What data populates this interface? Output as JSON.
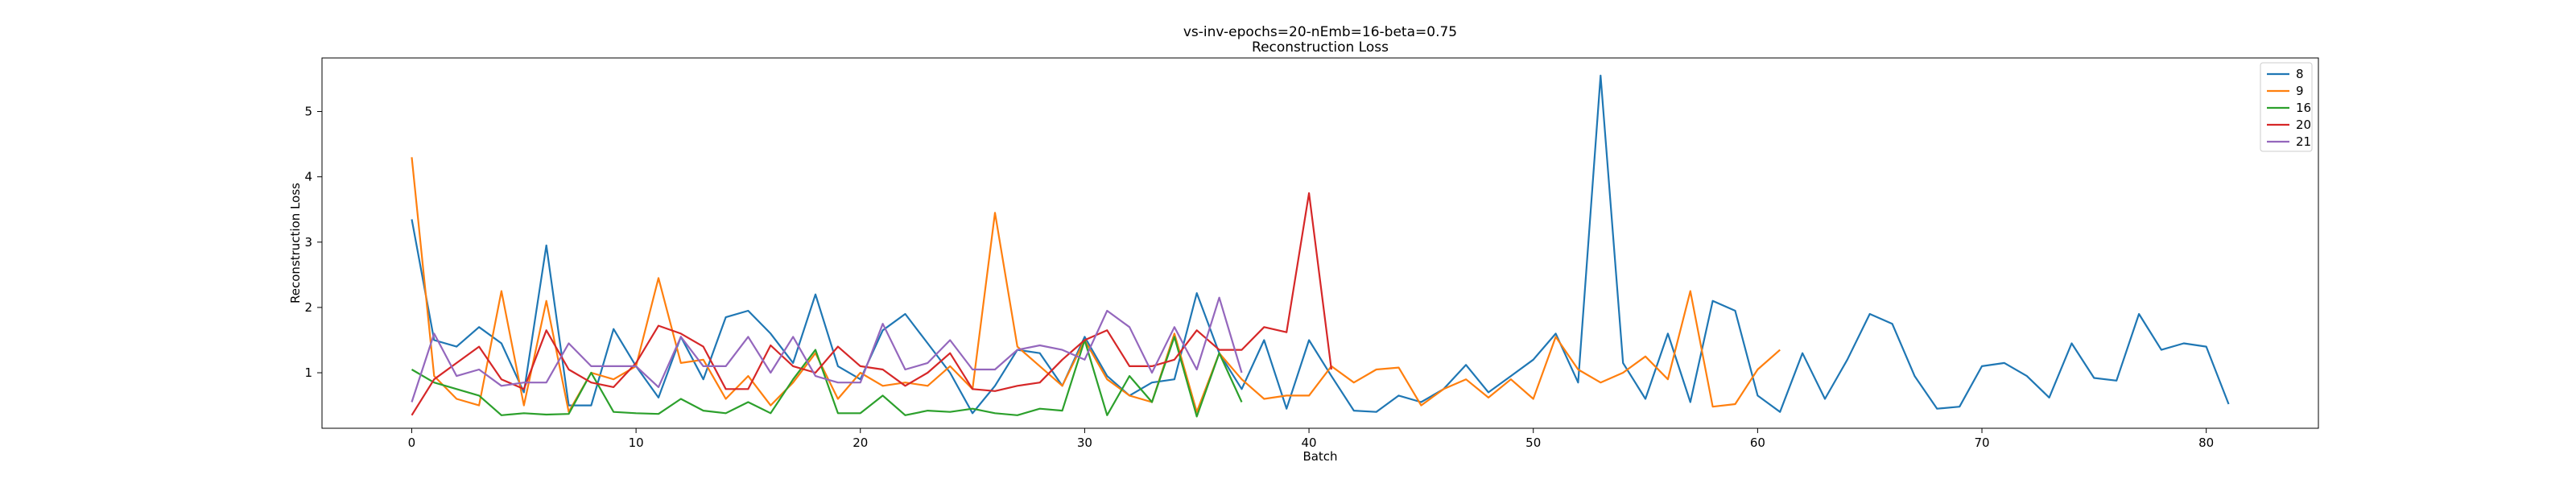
{
  "chart_data": {
    "type": "line",
    "title": "vs-inv-epochs=20-nEmb=16-beta=0.75",
    "subtitle": "Reconstruction Loss",
    "xlabel": "Batch",
    "ylabel": "Reconstruction Loss",
    "xlim": [
      -4,
      85
    ],
    "ylim": [
      0.15,
      5.82
    ],
    "xticks": [
      0,
      10,
      20,
      30,
      40,
      50,
      60,
      70,
      80
    ],
    "yticks": [
      1,
      2,
      3,
      4,
      5
    ],
    "grid": false,
    "legend_position": "top-right",
    "series": [
      {
        "name": "8",
        "color": "#1f77b4",
        "values": [
          3.35,
          1.5,
          1.4,
          1.7,
          1.45,
          0.7,
          2.95,
          0.5,
          0.5,
          1.67,
          1.1,
          0.62,
          1.55,
          0.9,
          1.85,
          1.95,
          1.6,
          1.15,
          2.2,
          1.1,
          0.9,
          1.65,
          1.9,
          1.45,
          1.0,
          0.38,
          0.8,
          1.35,
          1.3,
          0.8,
          1.55,
          0.95,
          0.65,
          0.85,
          0.9,
          2.22,
          1.3,
          0.75,
          1.5,
          0.45,
          1.5,
          0.95,
          0.42,
          0.4,
          0.65,
          0.55,
          0.75,
          1.12,
          0.7,
          0.95,
          1.2,
          1.6,
          0.85,
          5.55,
          1.15,
          0.6,
          1.6,
          0.55,
          2.1,
          1.95,
          0.65,
          0.4,
          1.3,
          0.6,
          1.2,
          1.9,
          1.75,
          0.95,
          0.45,
          0.48,
          1.1,
          1.15,
          0.95,
          0.62,
          1.45,
          0.92,
          0.88,
          1.9,
          1.35,
          1.45,
          1.4,
          0.52
        ]
      },
      {
        "name": "9",
        "color": "#ff7f0e",
        "values": [
          4.3,
          0.95,
          0.6,
          0.5,
          2.25,
          0.5,
          2.1,
          0.4,
          1.0,
          0.9,
          1.1,
          2.45,
          1.15,
          1.2,
          0.6,
          0.95,
          0.5,
          0.85,
          1.3,
          0.6,
          1.0,
          0.8,
          0.85,
          0.8,
          1.1,
          0.75,
          3.45,
          1.4,
          1.1,
          0.8,
          1.5,
          0.9,
          0.65,
          0.55,
          1.6,
          0.4,
          1.3,
          0.9,
          0.6,
          0.65,
          0.65,
          1.1,
          0.85,
          1.05,
          1.08,
          0.5,
          0.75,
          0.9,
          0.62,
          0.9,
          0.6,
          1.55,
          1.05,
          0.85,
          1.0,
          1.25,
          0.9,
          2.25,
          0.48,
          0.52,
          1.05,
          1.35
        ]
      },
      {
        "name": "16",
        "color": "#2ca02c",
        "values": [
          1.05,
          0.85,
          0.75,
          0.65,
          0.35,
          0.38,
          0.36,
          0.37,
          1.0,
          0.4,
          0.38,
          0.37,
          0.6,
          0.42,
          0.38,
          0.55,
          0.38,
          0.9,
          1.35,
          0.38,
          0.38,
          0.65,
          0.35,
          0.42,
          0.4,
          0.45,
          0.38,
          0.35,
          0.45,
          0.42,
          1.5,
          0.35,
          0.95,
          0.55,
          1.55,
          0.33,
          1.3,
          0.55
        ]
      },
      {
        "name": "20",
        "color": "#d62728",
        "values": [
          0.35,
          0.9,
          1.15,
          1.4,
          0.9,
          0.75,
          1.65,
          1.05,
          0.85,
          0.78,
          1.15,
          1.72,
          1.6,
          1.4,
          0.75,
          0.75,
          1.42,
          1.1,
          1.0,
          1.4,
          1.1,
          1.05,
          0.8,
          1.0,
          1.3,
          0.75,
          0.72,
          0.8,
          0.85,
          1.2,
          1.5,
          1.65,
          1.1,
          1.1,
          1.2,
          1.65,
          1.35,
          1.35,
          1.7,
          1.62,
          3.75,
          1.05
        ]
      },
      {
        "name": "21",
        "color": "#9467bd",
        "values": [
          0.55,
          1.6,
          0.95,
          1.05,
          0.8,
          0.85,
          0.85,
          1.45,
          1.1,
          1.1,
          1.1,
          0.78,
          1.55,
          1.1,
          1.1,
          1.55,
          1.0,
          1.55,
          0.95,
          0.85,
          0.85,
          1.75,
          1.05,
          1.15,
          1.5,
          1.05,
          1.05,
          1.35,
          1.42,
          1.35,
          1.2,
          1.95,
          1.7,
          1.0,
          1.7,
          1.05,
          2.15,
          1.0
        ]
      }
    ]
  }
}
